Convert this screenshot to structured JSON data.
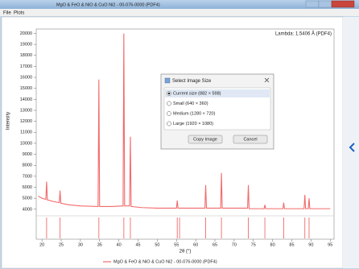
{
  "window": {
    "title": "MgO & FeO & NiO & CuO Ni2 - 00-076-0000 (PDF4)",
    "menu": [
      "File",
      "Plots"
    ]
  },
  "chart_data": {
    "type": "line",
    "annotation": "Lambda: 1.5406 Å (PDF4)",
    "x_label": "2θ (°)",
    "y_label": "Intensity",
    "x": [
      19,
      20,
      21,
      21.2,
      21.4,
      23,
      24.5,
      24.7,
      24.9,
      27,
      30,
      34.6,
      34.8,
      35.0,
      38,
      41.1,
      41.3,
      41.5,
      42.8,
      43.0,
      43.2,
      46,
      50,
      55.0,
      55.2,
      55.4,
      60,
      62.4,
      62.6,
      62.8,
      66.5,
      66.7,
      66.9,
      70,
      73.5,
      73.7,
      73.9,
      77.8,
      78.0,
      78.2,
      82.7,
      82.9,
      83.1,
      88.2,
      88.4,
      88.6,
      89.3,
      89.5,
      89.7,
      95
    ],
    "series": [
      {
        "name": "MgO & FeO & NiO & CuO Ni2 - 00-076-0000 (PDF4)",
        "color": "#f26a6a",
        "values": [
          5200,
          5000,
          4900,
          6500,
          4850,
          4700,
          4600,
          5700,
          4550,
          4400,
          4300,
          4250,
          15800,
          4250,
          4250,
          4300,
          20000,
          4300,
          4300,
          10600,
          4250,
          4150,
          4100,
          4100,
          4800,
          4100,
          4100,
          4100,
          6200,
          4100,
          4100,
          7300,
          4100,
          4100,
          4100,
          6200,
          4050,
          4050,
          4400,
          4050,
          4050,
          4600,
          4050,
          4050,
          5300,
          4050,
          4050,
          5000,
          4050,
          4050
        ]
      }
    ],
    "reference_x": [
      21.2,
      24.7,
      34.8,
      41.3,
      43.0,
      55.2,
      55.8,
      62.6,
      66.7,
      73.7,
      78.0,
      82.9,
      88.4,
      89.5
    ],
    "xlim": [
      18.5,
      96
    ],
    "ylim": [
      3400,
      20400
    ],
    "xticks": [
      20,
      25,
      30,
      35,
      40,
      45,
      50,
      55,
      60,
      65,
      70,
      75,
      80,
      85,
      90,
      95
    ],
    "yticks": [
      4000,
      5000,
      6000,
      7000,
      8000,
      9000,
      10000,
      11000,
      12000,
      13000,
      14000,
      15000,
      16000,
      17000,
      18000,
      19000,
      20000
    ],
    "grid": false
  },
  "dialog": {
    "title": "Select Image Size",
    "options": [
      "Current size (882 × 598)",
      "Small (640 × 360)",
      "Medium (1280 × 720)",
      "Large (1920 × 1080)"
    ],
    "selected": 0,
    "buttons": [
      "Copy Image",
      "Cancel"
    ]
  }
}
